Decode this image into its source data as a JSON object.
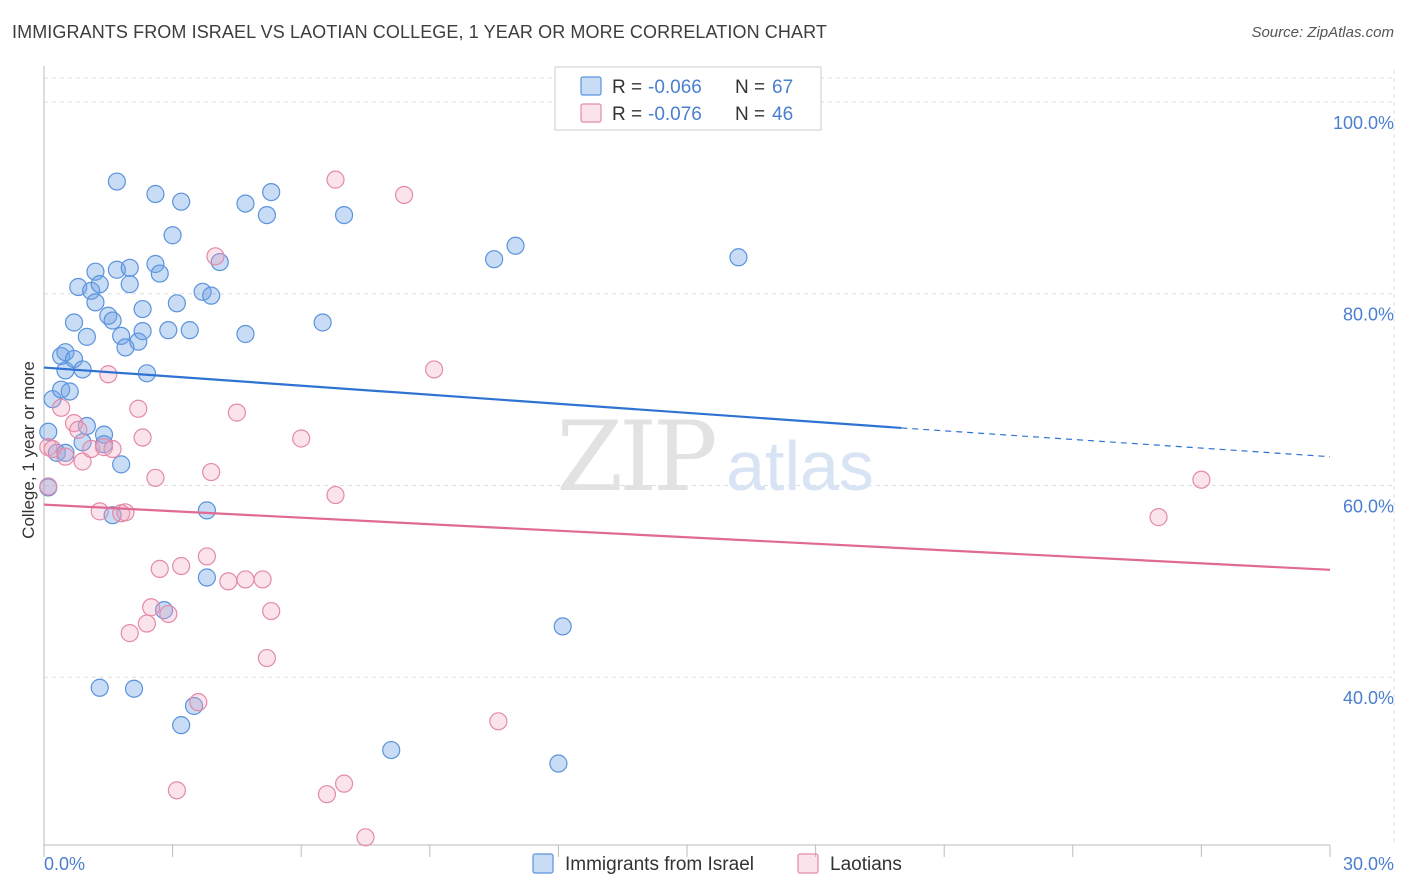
{
  "title": "IMMIGRANTS FROM ISRAEL VS LAOTIAN COLLEGE, 1 YEAR OR MORE CORRELATION CHART",
  "source": "Source: ZipAtlas.com",
  "watermark": {
    "zip": "ZIP",
    "atlas": "atlas"
  },
  "colors": {
    "blue": "#6fa3e6",
    "blue_line": "#2f73d2",
    "pink": "#f0a3bc",
    "pink_line": "#e06a94",
    "axis_text": "#4a7fd0",
    "grid": "#dddddd"
  },
  "legend_top": {
    "rows": [
      {
        "r_label": "R = ",
        "r_value": "-0.066",
        "n_label": "N = ",
        "n_value": "67"
      },
      {
        "r_label": "R = ",
        "r_value": "-0.076",
        "n_label": "N = ",
        "n_value": "46"
      }
    ]
  },
  "chart_data": {
    "type": "scatter",
    "ylabel": "College, 1 year or more",
    "x_range": [
      0,
      30
    ],
    "y_range": [
      22.5,
      102.5
    ],
    "x_ticks": [
      {
        "value": 0,
        "label": "0.0%"
      },
      {
        "value": 30,
        "label": "30.0%"
      }
    ],
    "y_ticks": [
      {
        "value": 40,
        "label": "40.0%"
      },
      {
        "value": 60,
        "label": "60.0%"
      },
      {
        "value": 80,
        "label": "80.0%"
      },
      {
        "value": 100,
        "label": "100.0%"
      }
    ],
    "grid": true,
    "legend_position": "bottom-center",
    "series": [
      {
        "name": "Immigrants from Israel",
        "color": "#6fa3e6",
        "R": -0.066,
        "N": 67,
        "trend": {
          "x0": 0,
          "y0": 72.3,
          "x1": 20.0,
          "y1": 66.0,
          "x_dash_end": 30,
          "y_dash_end": 63.0
        },
        "points": [
          [
            0.1,
            65.6
          ],
          [
            0.1,
            59.8
          ],
          [
            0.2,
            69.0
          ],
          [
            0.3,
            63.4
          ],
          [
            0.4,
            70.0
          ],
          [
            0.4,
            73.5
          ],
          [
            0.5,
            73.9
          ],
          [
            0.5,
            72.0
          ],
          [
            0.5,
            63.4
          ],
          [
            0.7,
            73.2
          ],
          [
            0.7,
            77.0
          ],
          [
            0.8,
            80.7
          ],
          [
            0.9,
            72.1
          ],
          [
            0.9,
            64.5
          ],
          [
            1.0,
            66.2
          ],
          [
            1.0,
            75.5
          ],
          [
            1.1,
            80.3
          ],
          [
            1.2,
            79.1
          ],
          [
            1.2,
            82.3
          ],
          [
            1.3,
            81.0
          ],
          [
            1.4,
            65.3
          ],
          [
            1.4,
            64.3
          ],
          [
            1.5,
            77.7
          ],
          [
            1.6,
            77.2
          ],
          [
            1.6,
            56.9
          ],
          [
            1.7,
            91.7
          ],
          [
            1.7,
            82.5
          ],
          [
            1.8,
            75.6
          ],
          [
            1.8,
            62.2
          ],
          [
            1.9,
            74.4
          ],
          [
            2.0,
            81.0
          ],
          [
            2.0,
            82.7
          ],
          [
            2.2,
            75.0
          ],
          [
            2.3,
            78.4
          ],
          [
            2.3,
            76.1
          ],
          [
            2.4,
            71.7
          ],
          [
            2.6,
            90.4
          ],
          [
            2.6,
            83.1
          ],
          [
            2.7,
            82.1
          ],
          [
            2.8,
            47.0
          ],
          [
            2.9,
            76.2
          ],
          [
            3.0,
            86.1
          ],
          [
            3.1,
            79.0
          ],
          [
            3.2,
            89.6
          ],
          [
            3.4,
            76.2
          ],
          [
            3.5,
            37.0
          ],
          [
            3.7,
            80.2
          ],
          [
            3.8,
            57.4
          ],
          [
            3.8,
            50.4
          ],
          [
            3.9,
            79.8
          ],
          [
            4.1,
            83.3
          ],
          [
            4.7,
            89.4
          ],
          [
            4.7,
            75.8
          ],
          [
            5.2,
            88.2
          ],
          [
            5.3,
            90.6
          ],
          [
            6.5,
            77.0
          ],
          [
            7.0,
            88.2
          ],
          [
            10.5,
            83.6
          ],
          [
            11.0,
            85.0
          ],
          [
            12.0,
            31.0
          ],
          [
            12.1,
            45.3
          ],
          [
            16.2,
            83.8
          ],
          [
            1.3,
            38.9
          ],
          [
            2.1,
            38.8
          ],
          [
            3.2,
            35.0
          ],
          [
            8.1,
            32.4
          ],
          [
            0.6,
            69.8
          ]
        ]
      },
      {
        "name": "Laotians",
        "color": "#f0a3bc",
        "R": -0.076,
        "N": 46,
        "trend": {
          "x0": 0,
          "y0": 58.0,
          "x1": 30,
          "y1": 51.2
        },
        "points": [
          [
            0.1,
            59.9
          ],
          [
            0.1,
            64.0
          ],
          [
            0.2,
            63.8
          ],
          [
            0.4,
            68.1
          ],
          [
            0.5,
            63.0
          ],
          [
            0.7,
            66.5
          ],
          [
            0.8,
            65.8
          ],
          [
            0.9,
            62.5
          ],
          [
            1.1,
            63.8
          ],
          [
            1.3,
            57.3
          ],
          [
            1.4,
            64.0
          ],
          [
            1.5,
            71.6
          ],
          [
            1.6,
            63.8
          ],
          [
            1.8,
            57.1
          ],
          [
            1.9,
            57.2
          ],
          [
            2.0,
            44.6
          ],
          [
            2.2,
            68.0
          ],
          [
            2.3,
            65.0
          ],
          [
            2.4,
            45.6
          ],
          [
            2.5,
            47.3
          ],
          [
            2.6,
            60.8
          ],
          [
            2.7,
            51.3
          ],
          [
            2.9,
            46.6
          ],
          [
            3.1,
            28.2
          ],
          [
            3.2,
            51.6
          ],
          [
            3.6,
            37.4
          ],
          [
            3.8,
            52.6
          ],
          [
            3.9,
            61.4
          ],
          [
            4.0,
            83.9
          ],
          [
            4.3,
            50.0
          ],
          [
            4.5,
            67.6
          ],
          [
            4.7,
            50.2
          ],
          [
            5.1,
            50.2
          ],
          [
            5.2,
            42.0
          ],
          [
            5.3,
            46.9
          ],
          [
            6.0,
            64.9
          ],
          [
            6.6,
            27.8
          ],
          [
            6.8,
            59.0
          ],
          [
            7.0,
            28.9
          ],
          [
            7.5,
            23.3
          ],
          [
            8.4,
            90.3
          ],
          [
            9.1,
            72.1
          ],
          [
            10.6,
            35.4
          ],
          [
            26.0,
            56.7
          ],
          [
            27.0,
            60.6
          ],
          [
            6.8,
            91.9
          ]
        ]
      }
    ]
  }
}
